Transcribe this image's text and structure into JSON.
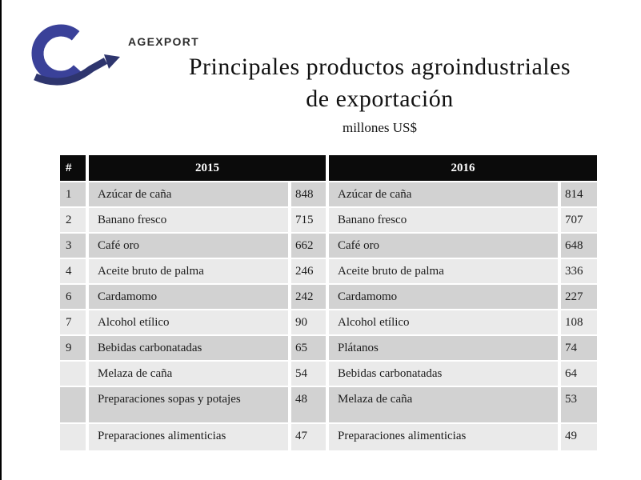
{
  "brand": {
    "name": "AGEXPORT",
    "logo_ring_color": "#3a4199",
    "logo_arrow_color": "#2e356e"
  },
  "title": {
    "line1": "Principales productos agroindustriales",
    "line2": "de exportación",
    "subtitle": "millones US$"
  },
  "table": {
    "headers": {
      "rank": "#",
      "col2015": "2015",
      "col2016": "2016"
    },
    "rows": [
      {
        "rank": "1",
        "product_2015": "Azúcar de caña",
        "value_2015": "848",
        "product_2016": "Azúcar de caña",
        "value_2016": "814"
      },
      {
        "rank": "2",
        "product_2015": "Banano fresco",
        "value_2015": "715",
        "product_2016": "Banano fresco",
        "value_2016": "707"
      },
      {
        "rank": "3",
        "product_2015": "Café oro",
        "value_2015": "662",
        "product_2016": "Café oro",
        "value_2016": "648"
      },
      {
        "rank": "4",
        "product_2015": "Aceite bruto de palma",
        "value_2015": "246",
        "product_2016": "Aceite bruto de palma",
        "value_2016": "336"
      },
      {
        "rank": "6",
        "product_2015": "Cardamomo",
        "value_2015": "242",
        "product_2016": "Cardamomo",
        "value_2016": "227"
      },
      {
        "rank": "7",
        "product_2015": "Alcohol etílico",
        "value_2015": "90",
        "product_2016": "Alcohol etílico",
        "value_2016": "108"
      },
      {
        "rank": "9",
        "product_2015": "Bebidas carbonatadas",
        "value_2015": "65",
        "product_2016": "Plátanos",
        "value_2016": "74"
      },
      {
        "rank": "",
        "product_2015": "Melaza de caña",
        "value_2015": "54",
        "product_2016": "Bebidas carbonatadas",
        "value_2016": "64"
      },
      {
        "rank": "",
        "product_2015": "Preparaciones sopas y potajes",
        "value_2015": "48",
        "product_2016": "Melaza de caña",
        "value_2016": "53"
      },
      {
        "rank": "",
        "product_2015": "Preparaciones alimenticias",
        "value_2015": "47",
        "product_2016": "Preparaciones alimenticias",
        "value_2016": "49"
      }
    ],
    "colors": {
      "header_bg": "#0b0b0b",
      "header_text": "#ffffff",
      "row_dark": "#d2d2d2",
      "row_light": "#eaeaea",
      "text": "#1c1c1c"
    }
  }
}
